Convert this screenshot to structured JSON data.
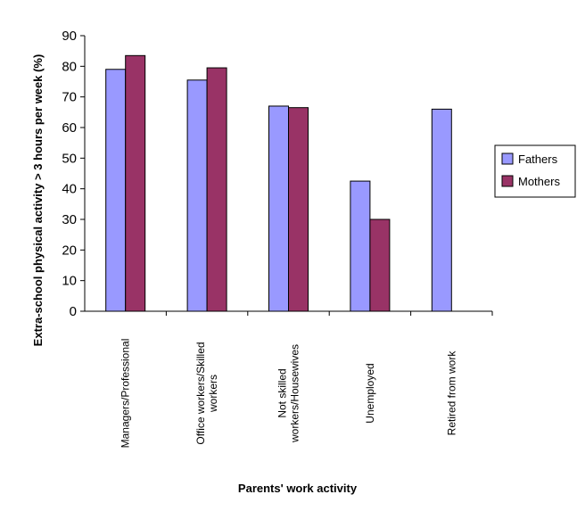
{
  "chart_data": {
    "type": "bar",
    "xlabel": "Parents' work activity",
    "ylabel": "Extra-school physical activity > 3 hours per week (%)",
    "ylim": [
      0,
      90
    ],
    "yticks": [
      "0",
      "10",
      "20",
      "30",
      "40",
      "50",
      "60",
      "70",
      "80",
      "90"
    ],
    "categories": [
      [
        "Managers/Professional"
      ],
      [
        "Office workers/Skilled",
        "workers"
      ],
      [
        "Not skilled",
        "workers/Housewives"
      ],
      [
        "Unemployed"
      ],
      [
        "Retired from work"
      ]
    ],
    "series": [
      {
        "name": "Fathers",
        "color": "#9999ff",
        "values": [
          79,
          75.5,
          67,
          42.5,
          66
        ]
      },
      {
        "name": "Mothers",
        "color": "#993366",
        "values": [
          83.5,
          79.5,
          66.5,
          30,
          null
        ]
      }
    ],
    "legend_position": "right",
    "grid": false
  }
}
